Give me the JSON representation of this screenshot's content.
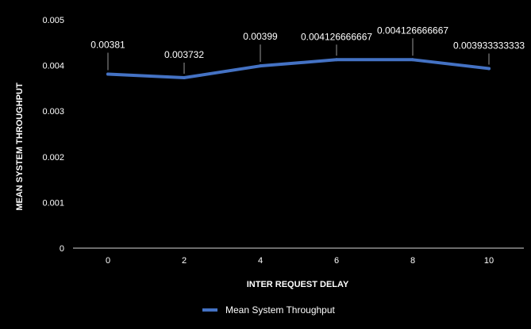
{
  "chart_data": {
    "type": "line",
    "title": "",
    "xlabel": "INTER REQUEST DELAY",
    "ylabel": "MEAN SYSTEM THROUGHPUT",
    "x": [
      0,
      2,
      4,
      6,
      8,
      10
    ],
    "x_tick_labels": [
      "0",
      "2",
      "4",
      "6",
      "8",
      "10"
    ],
    "y_tick_labels": [
      "0",
      "0.001",
      "0.002",
      "0.003",
      "0.004",
      "0.005"
    ],
    "y_ticks": [
      0,
      0.001,
      0.002,
      0.003,
      0.004,
      0.005
    ],
    "ylim": [
      0,
      0.005
    ],
    "grid": false,
    "legend_position": "bottom-center",
    "series": [
      {
        "name": "Mean System Throughput",
        "color": "#4472c4",
        "values": [
          0.00381,
          0.003732,
          0.00399,
          0.004126666667,
          0.004126666667,
          0.003933333333
        ],
        "data_labels": [
          "0.00381",
          "0.003732",
          "0.00399",
          "0.004126666667",
          "0.004126666667",
          "0.003933333333"
        ]
      }
    ],
    "colors": {
      "background": "#000000",
      "text": "#ffffff",
      "axis": "#d9d9d9",
      "leader_line": "#bfbfbf"
    }
  }
}
